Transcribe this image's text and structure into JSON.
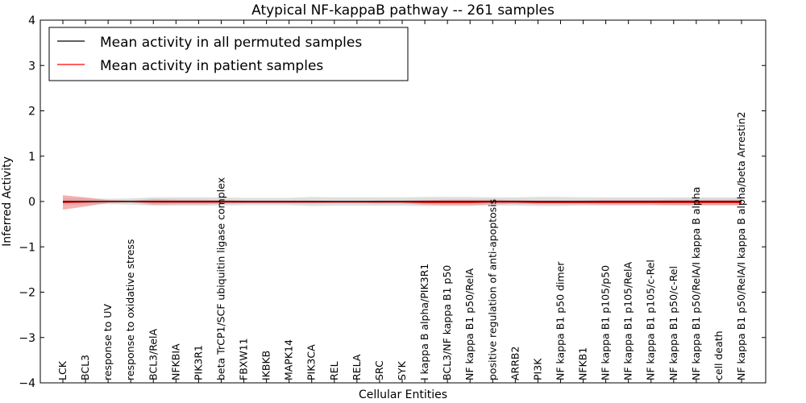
{
  "chart_data": {
    "type": "line",
    "title": "Atypical NF-kappaB pathway -- 261 samples",
    "xlabel": "Cellular Entities",
    "ylabel": "Inferred Activity",
    "ylim": [
      -4,
      4
    ],
    "yticks": [
      "−4",
      "−3",
      "−2",
      "−1",
      "0",
      "1",
      "2",
      "3",
      "4"
    ],
    "ytick_values": [
      -4,
      -3,
      -2,
      -1,
      0,
      1,
      2,
      3,
      4
    ],
    "grid": false,
    "legend_position": "top-left",
    "categories": [
      "LCK",
      "BCL3",
      "response to UV",
      "response to oxidative stress",
      "BCL3/RelA",
      "NFKBIA",
      "PIK3R1",
      "beta TrCP1/SCF ubiquitin ligase complex",
      "FBXW11",
      "IKBKB",
      "MAPK14",
      "PIK3CA",
      "REL",
      "RELA",
      "SRC",
      "SYK",
      "I kappa B alpha/PIK3R1",
      "BCL3/NF kappa B1 p50",
      "NF kappa B1 p50/RelA",
      "positive regulation of anti-apoptosis",
      "ARRB2",
      "PI3K",
      "NF kappa B1 p50 dimer",
      "NFKB1",
      "NF kappa B1 p105/p50",
      "NF kappa B1 p105/RelA",
      "NF kappa B1 p105/c-Rel",
      "NF kappa B1 p50/c-Rel",
      "NF kappa B1 p50/RelA/I kappa B alpha",
      "cell death",
      "NF kappa B1 p50/RelA/I kappa B alpha/beta Arrestin2"
    ],
    "series": [
      {
        "name": "Mean activity in all permuted samples",
        "color": "#000000",
        "band_color": "#bdbdbd",
        "values": [
          0,
          0,
          0,
          0,
          0,
          0,
          0,
          0,
          0,
          0,
          0,
          0,
          0,
          0,
          0,
          0,
          0,
          0,
          0,
          0,
          0,
          0,
          0,
          0,
          0,
          0,
          0,
          0,
          0,
          0,
          0
        ],
        "band_half_width": [
          0.08,
          0.07,
          0.06,
          0.07,
          0.09,
          0.09,
          0.09,
          0.09,
          0.08,
          0.08,
          0.08,
          0.1,
          0.09,
          0.09,
          0.09,
          0.09,
          0.1,
          0.1,
          0.1,
          0.09,
          0.09,
          0.1,
          0.1,
          0.09,
          0.09,
          0.09,
          0.09,
          0.09,
          0.09,
          0.09,
          0.09
        ]
      },
      {
        "name": "Mean activity in patient samples",
        "color": "#ff0000",
        "band_color": "#f08080",
        "values": [
          -0.02,
          -0.01,
          0,
          0,
          -0.01,
          -0.01,
          -0.01,
          -0.01,
          -0.01,
          -0.01,
          -0.01,
          -0.01,
          -0.01,
          -0.01,
          -0.01,
          -0.01,
          -0.02,
          -0.02,
          -0.02,
          -0.01,
          -0.01,
          -0.02,
          -0.02,
          -0.02,
          -0.02,
          -0.02,
          -0.02,
          -0.02,
          -0.02,
          -0.02,
          -0.02
        ],
        "band_half_width": [
          0.16,
          0.1,
          0.03,
          0.02,
          0.06,
          0.05,
          0.05,
          0.04,
          0.03,
          0.03,
          0.03,
          0.03,
          0.02,
          0.02,
          0.03,
          0.03,
          0.05,
          0.06,
          0.06,
          0.05,
          0.04,
          0.04,
          0.04,
          0.04,
          0.05,
          0.05,
          0.05,
          0.06,
          0.06,
          0.06,
          0.06
        ]
      }
    ]
  },
  "colors": {
    "axis": "#000000",
    "background": "#ffffff"
  }
}
